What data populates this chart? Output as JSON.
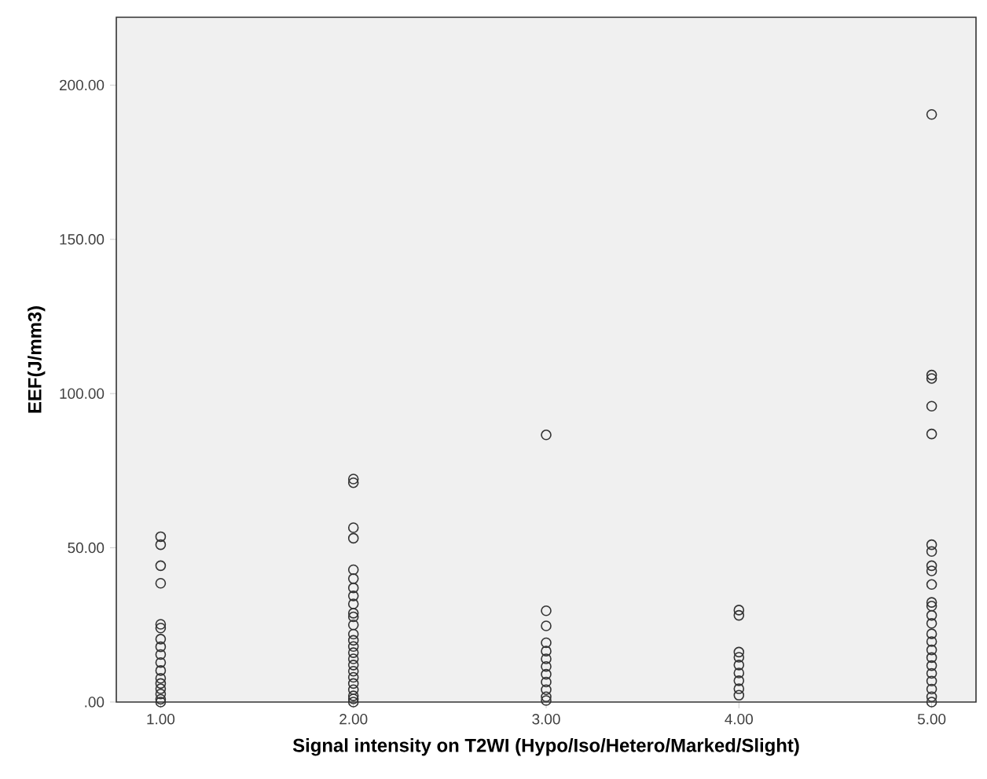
{
  "chart_data": {
    "type": "scatter",
    "xlabel": "Signal intensity on T2WI (Hypo/Iso/Hetero/Marked/Slight)",
    "ylabel": "EEF(J/mm3)",
    "x": [
      1,
      1,
      1,
      1,
      1,
      1,
      1,
      1,
      1,
      1,
      1,
      1,
      1,
      1,
      1,
      1,
      1,
      2,
      2,
      2,
      2,
      2,
      2,
      2,
      2,
      2,
      2,
      2,
      2,
      2,
      2,
      2,
      2,
      2,
      2,
      2,
      2,
      2,
      2,
      2,
      2,
      2,
      3,
      3,
      3,
      3,
      3,
      3,
      3,
      3,
      3,
      3,
      3,
      3,
      4,
      4,
      4,
      4,
      4,
      4,
      4,
      4,
      4,
      5,
      5,
      5,
      5,
      5,
      5,
      5,
      5,
      5,
      5,
      5,
      5,
      5,
      5,
      5,
      5,
      5,
      5,
      5,
      5,
      5,
      5,
      5,
      5
    ],
    "values": [
      53.6,
      51,
      44.2,
      38.5,
      25.2,
      24,
      20.4,
      17.9,
      15.4,
      12.8,
      10.2,
      7.7,
      6,
      4.3,
      2.6,
      0.9,
      0,
      72.3,
      71.1,
      56.5,
      53.1,
      42.9,
      40,
      37,
      34.4,
      31.8,
      28.8,
      27.6,
      25,
      22,
      20,
      18,
      16,
      14,
      12,
      10,
      8,
      6,
      4,
      2,
      1,
      0,
      86.6,
      29.6,
      24.7,
      19.2,
      16.5,
      14,
      11.5,
      9,
      6.5,
      4,
      1.7,
      0.5,
      29.8,
      28.1,
      16.2,
      14.5,
      12,
      9.4,
      6.9,
      4.3,
      2.2,
      190.5,
      106,
      104.9,
      95.9,
      86.9,
      51,
      48.8,
      44.2,
      42.5,
      38.1,
      32.3,
      31.1,
      28.1,
      25.5,
      22.1,
      19.6,
      16.9,
      14.4,
      11.8,
      9.3,
      6.8,
      4.2,
      1.7,
      0
    ],
    "color": "#333333",
    "marker": "circle",
    "xlim": [
      0.77,
      5.23
    ],
    "ylim": [
      0,
      222
    ],
    "xticks": [
      {
        "value": 1,
        "label": "1.00"
      },
      {
        "value": 2,
        "label": "2.00"
      },
      {
        "value": 3,
        "label": "3.00"
      },
      {
        "value": 4,
        "label": "4.00"
      },
      {
        "value": 5,
        "label": "5.00"
      }
    ],
    "yticks": [
      {
        "value": 0,
        "label": ".00"
      },
      {
        "value": 50,
        "label": "50.00"
      },
      {
        "value": 100,
        "label": "100.00"
      },
      {
        "value": 150,
        "label": "150.00"
      },
      {
        "value": 200,
        "label": "200.00"
      }
    ]
  }
}
